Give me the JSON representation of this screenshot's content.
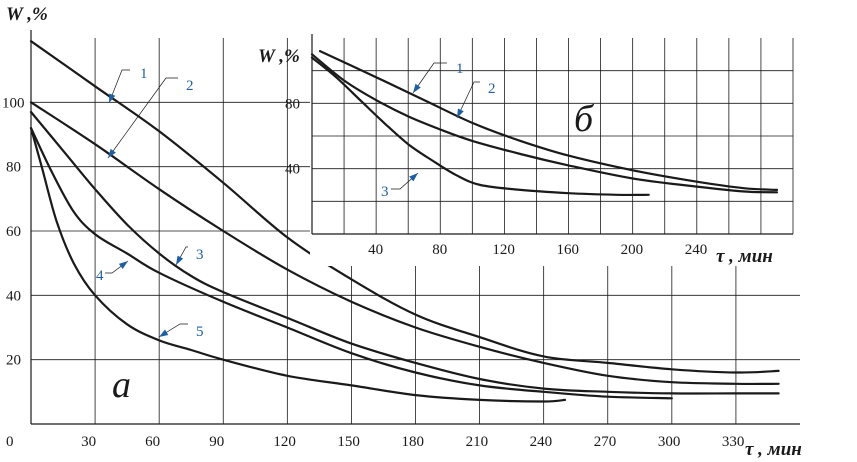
{
  "chart_data": [
    {
      "type": "line",
      "panel_label": "а",
      "ylabel": "W ,%",
      "xlabel": "τ , мин",
      "x_ticks": [
        "0",
        "30",
        "60",
        "90",
        "120",
        "150",
        "180",
        "210",
        "240",
        "270",
        "300",
        "330"
      ],
      "y_ticks": [
        "20",
        "40",
        "60",
        "80",
        "100"
      ],
      "xlim": [
        0,
        360
      ],
      "ylim": [
        0,
        120
      ],
      "grid": true,
      "series": [
        {
          "name": "1",
          "points": [
            [
              0,
              119
            ],
            [
              30,
              105
            ],
            [
              60,
              91
            ],
            [
              90,
              75
            ],
            [
              120,
              58
            ],
            [
              150,
              45
            ],
            [
              180,
              34
            ],
            [
              210,
              27
            ],
            [
              240,
              21
            ],
            [
              270,
              19
            ],
            [
              300,
              17
            ],
            [
              330,
              16
            ],
            [
              350,
              16.5
            ]
          ]
        },
        {
          "name": "2",
          "points": [
            [
              0,
              100
            ],
            [
              30,
              87
            ],
            [
              60,
              73
            ],
            [
              90,
              60
            ],
            [
              120,
              48
            ],
            [
              150,
              38
            ],
            [
              180,
              30
            ],
            [
              210,
              24
            ],
            [
              240,
              19
            ],
            [
              270,
              15
            ],
            [
              300,
              13
            ],
            [
              330,
              12.5
            ],
            [
              350,
              12.5
            ]
          ]
        },
        {
          "name": "3",
          "points": [
            [
              0,
              97
            ],
            [
              15,
              85
            ],
            [
              30,
              73
            ],
            [
              45,
              62
            ],
            [
              60,
              53
            ],
            [
              75,
              46
            ],
            [
              90,
              41
            ],
            [
              120,
              33
            ],
            [
              150,
              25
            ],
            [
              180,
              19
            ],
            [
              210,
              14
            ],
            [
              240,
              11
            ],
            [
              270,
              10
            ],
            [
              300,
              9.5
            ],
            [
              330,
              9.5
            ],
            [
              350,
              9.5
            ]
          ]
        },
        {
          "name": "4",
          "points": [
            [
              0,
              92
            ],
            [
              10,
              78
            ],
            [
              20,
              66
            ],
            [
              30,
              59
            ],
            [
              45,
              53
            ],
            [
              60,
              47
            ],
            [
              90,
              38
            ],
            [
              120,
              30
            ],
            [
              150,
              22
            ],
            [
              180,
              16
            ],
            [
              210,
              12
            ],
            [
              240,
              10
            ],
            [
              270,
              8.5
            ],
            [
              300,
              8
            ]
          ]
        },
        {
          "name": "5",
          "points": [
            [
              0,
              92
            ],
            [
              5,
              80
            ],
            [
              12,
              63
            ],
            [
              20,
              50
            ],
            [
              30,
              40
            ],
            [
              45,
              31
            ],
            [
              60,
              26
            ],
            [
              75,
              23
            ],
            [
              90,
              20
            ],
            [
              120,
              15
            ],
            [
              150,
              12
            ],
            [
              180,
              9
            ],
            [
              210,
              7.5
            ],
            [
              240,
              7
            ],
            [
              250,
              7.5
            ]
          ]
        }
      ]
    },
    {
      "type": "line",
      "panel_label": "б",
      "ylabel": "W ,%",
      "xlabel": "τ , мин",
      "x_ticks": [
        "40",
        "80",
        "120",
        "160",
        "200",
        "240"
      ],
      "y_ticks": [
        "40",
        "80"
      ],
      "xlim": [
        0,
        300
      ],
      "ylim": [
        0,
        120
      ],
      "grid": true,
      "series": [
        {
          "name": "1",
          "points": [
            [
              5,
              112
            ],
            [
              40,
              96
            ],
            [
              70,
              82
            ],
            [
              100,
              68
            ],
            [
              130,
              57
            ],
            [
              160,
              48
            ],
            [
              200,
              39
            ],
            [
              240,
              32
            ],
            [
              270,
              28
            ],
            [
              290,
              27
            ]
          ]
        },
        {
          "name": "2",
          "points": [
            [
              0,
              110
            ],
            [
              20,
              94
            ],
            [
              40,
              82
            ],
            [
              60,
              72
            ],
            [
              80,
              64
            ],
            [
              100,
              57
            ],
            [
              130,
              49
            ],
            [
              160,
              42
            ],
            [
              200,
              34
            ],
            [
              240,
              29
            ],
            [
              270,
              26
            ],
            [
              290,
              25.5
            ]
          ]
        },
        {
          "name": "3",
          "points": [
            [
              0,
              108
            ],
            [
              15,
              96
            ],
            [
              30,
              82
            ],
            [
              45,
              68
            ],
            [
              60,
              55
            ],
            [
              75,
              45
            ],
            [
              90,
              36
            ],
            [
              105,
              30
            ],
            [
              130,
              27
            ],
            [
              160,
              25
            ],
            [
              190,
              24
            ],
            [
              210,
              24
            ]
          ]
        }
      ]
    }
  ]
}
